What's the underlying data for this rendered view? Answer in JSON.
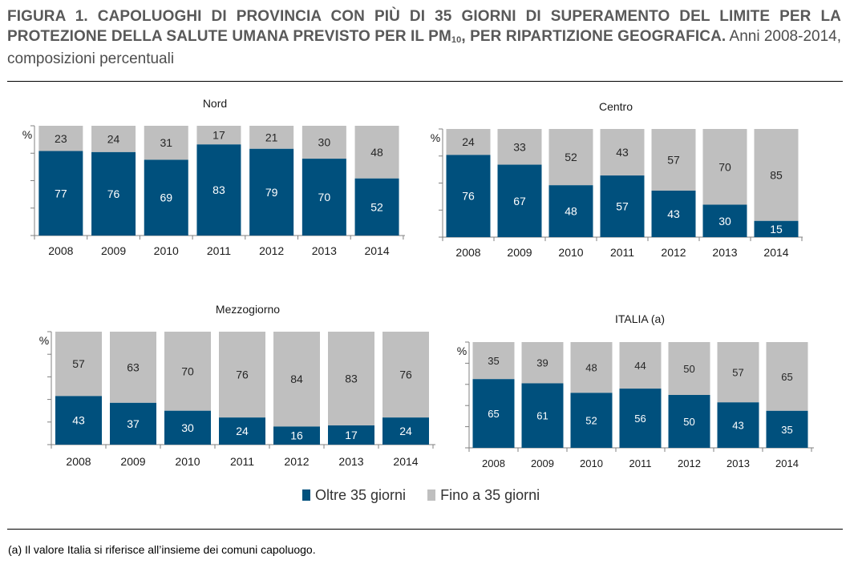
{
  "title": {
    "bold_part1": "FIGURA 1. CAPOLUOGHI DI PROVINCIA CON PIÙ DI 35 GIORNI DI SUPERAMENTO DEL LIMITE PER LA PROTEZIONE DELLA SALUTE UMANA PREVISTO PER IL PM",
    "bold_sub": "10",
    "bold_part2": ", PER RIPARTIZIONE GEOGRAFICA.",
    "normal": " Anni 2008-2014, composizioni percentuali"
  },
  "colors": {
    "oltre": "#00507d",
    "fino": "#bfbfbf"
  },
  "legend": [
    {
      "label": "Oltre 35 giorni",
      "color": "#00507d"
    },
    {
      "label": "Fino a 35 giorni",
      "color": "#bfbfbf"
    }
  ],
  "footnote": "(a) Il valore Italia si riferisce all’insieme dei comuni capoluogo.",
  "chart_data": [
    {
      "type": "bar",
      "stacked": true,
      "title": "Nord",
      "ylabel": "%",
      "ylim": [
        0,
        100
      ],
      "categories": [
        "2008",
        "2009",
        "2010",
        "2011",
        "2012",
        "2013",
        "2014"
      ],
      "series": [
        {
          "name": "Oltre 35 giorni",
          "values": [
            77,
            76,
            69,
            83,
            79,
            70,
            52
          ]
        },
        {
          "name": "Fino a 35 giorni",
          "values": [
            23,
            24,
            31,
            17,
            21,
            30,
            48
          ]
        }
      ]
    },
    {
      "type": "bar",
      "stacked": true,
      "title": "Centro",
      "ylabel": "%",
      "ylim": [
        0,
        100
      ],
      "categories": [
        "2008",
        "2009",
        "2010",
        "2011",
        "2012",
        "2013",
        "2014"
      ],
      "series": [
        {
          "name": "Oltre 35 giorni",
          "values": [
            76,
            67,
            48,
            57,
            43,
            30,
            15
          ]
        },
        {
          "name": "Fino a 35 giorni",
          "values": [
            24,
            33,
            52,
            43,
            57,
            70,
            85
          ]
        }
      ]
    },
    {
      "type": "bar",
      "stacked": true,
      "title": "Mezzogiorno",
      "ylabel": "%",
      "ylim": [
        0,
        100
      ],
      "categories": [
        "2008",
        "2009",
        "2010",
        "2011",
        "2012",
        "2013",
        "2014"
      ],
      "series": [
        {
          "name": "Oltre 35 giorni",
          "values": [
            43,
            37,
            30,
            24,
            16,
            17,
            24
          ]
        },
        {
          "name": "Fino a 35 giorni",
          "values": [
            57,
            63,
            70,
            76,
            84,
            83,
            76
          ]
        }
      ]
    },
    {
      "type": "bar",
      "stacked": true,
      "title": "ITALIA (a)",
      "ylabel": "%",
      "ylim": [
        0,
        100
      ],
      "categories": [
        "2008",
        "2009",
        "2010",
        "2011",
        "2012",
        "2013",
        "2014"
      ],
      "series": [
        {
          "name": "Oltre 35 giorni",
          "values": [
            65,
            61,
            52,
            56,
            50,
            43,
            35
          ]
        },
        {
          "name": "Fino a 35 giorni",
          "values": [
            35,
            39,
            48,
            44,
            50,
            57,
            65
          ]
        }
      ]
    }
  ]
}
